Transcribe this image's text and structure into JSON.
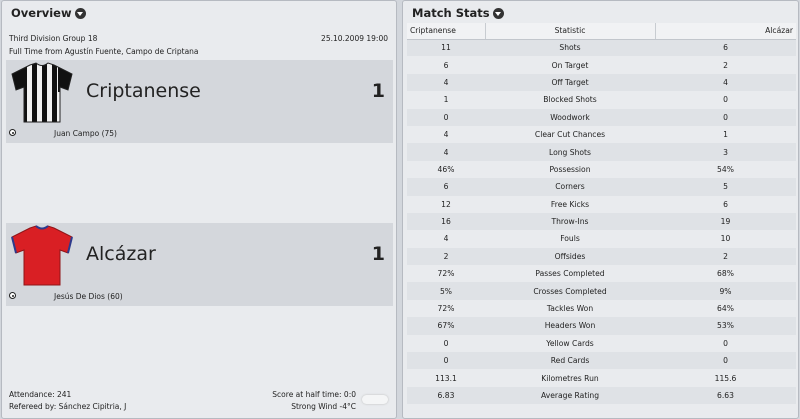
{
  "overview": {
    "title": "Overview",
    "competition": "Third Division Group 18",
    "date": "25.10.2009 19:00",
    "venue_line": "Full Time from Agustín Fuente, Campo de Criptana",
    "home": {
      "name": "Criptanense",
      "score": "1",
      "scorer": "Juan Campo (75)",
      "shirt_colors": {
        "primary": "#111111",
        "stripe": "#f2f2f2"
      }
    },
    "away": {
      "name": "Alcázar",
      "score": "1",
      "scorer": "Jesús De Dios (60)",
      "shirt_colors": {
        "primary": "#d91f24",
        "trim": "#2d3a8c"
      }
    },
    "attendance": "Attendance: 241",
    "referee": "Refereed by: Sánchez Cipitria, J",
    "half_time": "Score at half time: 0:0",
    "weather": "Strong Wind -4°C",
    "weather_icon": "cloud-icon"
  },
  "match_stats": {
    "title": "Match Stats",
    "columns": [
      "Criptanense",
      "Statistic",
      "Alcázar"
    ],
    "rows": [
      {
        "home": "11",
        "stat": "Shots",
        "away": "6"
      },
      {
        "home": "6",
        "stat": "On Target",
        "away": "2"
      },
      {
        "home": "4",
        "stat": "Off Target",
        "away": "4"
      },
      {
        "home": "1",
        "stat": "Blocked Shots",
        "away": "0"
      },
      {
        "home": "0",
        "stat": "Woodwork",
        "away": "0"
      },
      {
        "home": "4",
        "stat": "Clear Cut Chances",
        "away": "1"
      },
      {
        "home": "4",
        "stat": "Long Shots",
        "away": "3"
      },
      {
        "home": "46%",
        "stat": "Possession",
        "away": "54%"
      },
      {
        "home": "6",
        "stat": "Corners",
        "away": "5"
      },
      {
        "home": "12",
        "stat": "Free Kicks",
        "away": "6"
      },
      {
        "home": "16",
        "stat": "Throw-Ins",
        "away": "19"
      },
      {
        "home": "4",
        "stat": "Fouls",
        "away": "10"
      },
      {
        "home": "2",
        "stat": "Offsides",
        "away": "2"
      },
      {
        "home": "72%",
        "stat": "Passes Completed",
        "away": "68%"
      },
      {
        "home": "5%",
        "stat": "Crosses Completed",
        "away": "9%"
      },
      {
        "home": "72%",
        "stat": "Tackles Won",
        "away": "64%"
      },
      {
        "home": "67%",
        "stat": "Headers Won",
        "away": "53%"
      },
      {
        "home": "0",
        "stat": "Yellow Cards",
        "away": "0"
      },
      {
        "home": "0",
        "stat": "Red Cards",
        "away": "0"
      },
      {
        "home": "113.1",
        "stat": "Kilometres Run",
        "away": "115.6"
      },
      {
        "home": "6.83",
        "stat": "Average Rating",
        "away": "6.63"
      }
    ]
  }
}
